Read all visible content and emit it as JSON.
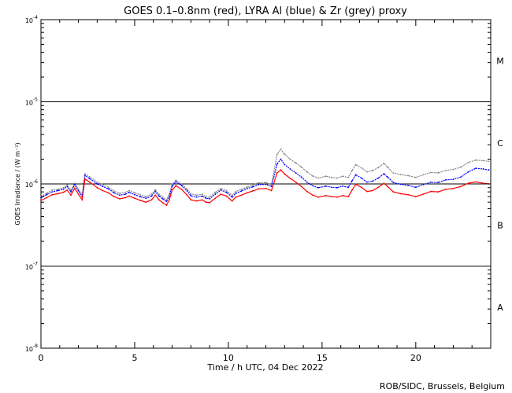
{
  "chart_data": {
    "type": "scatter",
    "title": "GOES 0.1–0.8nm (red), LYRA Al (blue) & Zr (grey) proxy",
    "xlabel": "Time / h UTC, 04 Dec 2022",
    "ylabel": "GOES Irradiance / (W m⁻²)",
    "credit": "ROB/SIDC, Brussels, Belgium",
    "xlim": [
      0,
      24
    ],
    "ylim": [
      1e-08,
      0.0001
    ],
    "yscale": "log",
    "x_ticks": [
      0,
      5,
      10,
      15,
      20
    ],
    "x_tick_labels": [
      "0",
      "5",
      "10",
      "15",
      "20"
    ],
    "y_ticks": [
      1e-08,
      1e-07,
      1e-06,
      1e-05,
      0.0001
    ],
    "y_tick_labels": [
      {
        "base": "10",
        "exp": "-8"
      },
      {
        "base": "10",
        "exp": "-7"
      },
      {
        "base": "10",
        "exp": "-6"
      },
      {
        "base": "10",
        "exp": "-5"
      },
      {
        "base": "10",
        "exp": "-4"
      }
    ],
    "flare_classes": [
      {
        "label": "A",
        "y": 3.16e-08
      },
      {
        "label": "B",
        "y": 3.16e-07
      },
      {
        "label": "C",
        "y": 3.16e-06
      },
      {
        "label": "M",
        "y": 3.16e-05
      }
    ],
    "threshold_lines": [
      1e-07,
      1e-06,
      1e-05
    ],
    "series": [
      {
        "name": "GOES 0.1–0.8nm",
        "color": "#ff0000",
        "points": [
          [
            0,
            6.3e-07
          ],
          [
            0.3,
            6.8e-07
          ],
          [
            0.6,
            7.4e-07
          ],
          [
            0.9,
            7.6e-07
          ],
          [
            1.2,
            7.9e-07
          ],
          [
            1.4,
            8.4e-07
          ],
          [
            1.6,
            7.3e-07
          ],
          [
            1.8,
            8.9e-07
          ],
          [
            2.0,
            7.5e-07
          ],
          [
            2.2,
            6.4e-07
          ],
          [
            2.35,
            1.15e-06
          ],
          [
            2.6,
            1.05e-06
          ],
          [
            3.0,
            9e-07
          ],
          [
            3.3,
            8.3e-07
          ],
          [
            3.6,
            7.8e-07
          ],
          [
            3.9,
            7e-07
          ],
          [
            4.2,
            6.6e-07
          ],
          [
            4.5,
            6.8e-07
          ],
          [
            4.7,
            7.1e-07
          ],
          [
            5.0,
            6.7e-07
          ],
          [
            5.3,
            6.3e-07
          ],
          [
            5.6,
            6e-07
          ],
          [
            5.9,
            6.4e-07
          ],
          [
            6.1,
            7.3e-07
          ],
          [
            6.3,
            6.4e-07
          ],
          [
            6.5,
            5.9e-07
          ],
          [
            6.7,
            5.5e-07
          ],
          [
            6.85,
            6.4e-07
          ],
          [
            7.0,
            8.4e-07
          ],
          [
            7.2,
            9.5e-07
          ],
          [
            7.5,
            8.6e-07
          ],
          [
            7.8,
            7.3e-07
          ],
          [
            8.0,
            6.4e-07
          ],
          [
            8.3,
            6.2e-07
          ],
          [
            8.6,
            6.4e-07
          ],
          [
            8.8,
            6e-07
          ],
          [
            9.0,
            5.9e-07
          ],
          [
            9.3,
            6.7e-07
          ],
          [
            9.6,
            7.5e-07
          ],
          [
            9.9,
            7.1e-07
          ],
          [
            10.2,
            6.2e-07
          ],
          [
            10.4,
            6.9e-07
          ],
          [
            10.7,
            7.3e-07
          ],
          [
            11.0,
            7.8e-07
          ],
          [
            11.3,
            8.2e-07
          ],
          [
            11.6,
            8.7e-07
          ],
          [
            12.0,
            8.8e-07
          ],
          [
            12.3,
            8.3e-07
          ],
          [
            12.6,
            1.36e-06
          ],
          [
            12.8,
            1.48e-06
          ],
          [
            13.0,
            1.32e-06
          ],
          [
            13.3,
            1.17e-06
          ],
          [
            13.6,
            1.05e-06
          ],
          [
            13.9,
            9.3e-07
          ],
          [
            14.2,
            8.1e-07
          ],
          [
            14.5,
            7.3e-07
          ],
          [
            14.8,
            6.9e-07
          ],
          [
            15.2,
            7.2e-07
          ],
          [
            15.5,
            7e-07
          ],
          [
            15.8,
            6.9e-07
          ],
          [
            16.1,
            7.2e-07
          ],
          [
            16.4,
            7e-07
          ],
          [
            16.6,
            8.4e-07
          ],
          [
            16.8,
            9.9e-07
          ],
          [
            17.1,
            9.1e-07
          ],
          [
            17.4,
            8.1e-07
          ],
          [
            17.7,
            8.3e-07
          ],
          [
            18.0,
            9.1e-07
          ],
          [
            18.3,
            1.02e-06
          ],
          [
            18.5,
            9.3e-07
          ],
          [
            18.8,
            8e-07
          ],
          [
            19.2,
            7.6e-07
          ],
          [
            19.6,
            7.4e-07
          ],
          [
            20.0,
            7e-07
          ],
          [
            20.4,
            7.5e-07
          ],
          [
            20.8,
            8.1e-07
          ],
          [
            21.2,
            8e-07
          ],
          [
            21.6,
            8.6e-07
          ],
          [
            22.0,
            8.8e-07
          ],
          [
            22.4,
            9.3e-07
          ],
          [
            22.8,
            1.02e-06
          ],
          [
            23.2,
            1.06e-06
          ],
          [
            23.6,
            1.02e-06
          ],
          [
            23.9,
            1e-06
          ]
        ]
      },
      {
        "name": "LYRA Al",
        "color": "#0000ff",
        "points": [
          [
            0,
            6.8e-07
          ],
          [
            0.3,
            7.4e-07
          ],
          [
            0.6,
            8e-07
          ],
          [
            0.9,
            8.3e-07
          ],
          [
            1.2,
            8.6e-07
          ],
          [
            1.4,
            9.3e-07
          ],
          [
            1.6,
            8e-07
          ],
          [
            1.8,
            9.8e-07
          ],
          [
            2.0,
            8.2e-07
          ],
          [
            2.2,
            7e-07
          ],
          [
            2.35,
            1.27e-06
          ],
          [
            2.6,
            1.16e-06
          ],
          [
            3.0,
            1e-06
          ],
          [
            3.3,
            9.3e-07
          ],
          [
            3.6,
            8.7e-07
          ],
          [
            3.9,
            7.8e-07
          ],
          [
            4.2,
            7.3e-07
          ],
          [
            4.5,
            7.5e-07
          ],
          [
            4.7,
            7.9e-07
          ],
          [
            5.0,
            7.4e-07
          ],
          [
            5.3,
            7e-07
          ],
          [
            5.6,
            6.7e-07
          ],
          [
            5.9,
            7.1e-07
          ],
          [
            6.1,
            8.1e-07
          ],
          [
            6.3,
            7.1e-07
          ],
          [
            6.5,
            6.6e-07
          ],
          [
            6.7,
            6.1e-07
          ],
          [
            6.85,
            7.1e-07
          ],
          [
            7.0,
            9.4e-07
          ],
          [
            7.2,
            1.06e-06
          ],
          [
            7.5,
            9.6e-07
          ],
          [
            7.8,
            8.2e-07
          ],
          [
            8.0,
            7.2e-07
          ],
          [
            8.3,
            6.9e-07
          ],
          [
            8.6,
            7.1e-07
          ],
          [
            8.8,
            6.7e-07
          ],
          [
            9.0,
            6.6e-07
          ],
          [
            9.3,
            7.5e-07
          ],
          [
            9.6,
            8.4e-07
          ],
          [
            9.9,
            7.9e-07
          ],
          [
            10.2,
            6.9e-07
          ],
          [
            10.4,
            7.7e-07
          ],
          [
            10.7,
            8.2e-07
          ],
          [
            11.0,
            8.8e-07
          ],
          [
            11.3,
            9.2e-07
          ],
          [
            11.6,
            9.8e-07
          ],
          [
            12.0,
            9.9e-07
          ],
          [
            12.3,
            9.3e-07
          ],
          [
            12.6,
            1.75e-06
          ],
          [
            12.8,
            2e-06
          ],
          [
            13.0,
            1.72e-06
          ],
          [
            13.3,
            1.52e-06
          ],
          [
            13.6,
            1.36e-06
          ],
          [
            13.9,
            1.21e-06
          ],
          [
            14.2,
            1.05e-06
          ],
          [
            14.5,
            9.5e-07
          ],
          [
            14.8,
            9e-07
          ],
          [
            15.2,
            9.4e-07
          ],
          [
            15.5,
            9.1e-07
          ],
          [
            15.8,
            9e-07
          ],
          [
            16.1,
            9.4e-07
          ],
          [
            16.4,
            9.1e-07
          ],
          [
            16.6,
            1.09e-06
          ],
          [
            16.8,
            1.29e-06
          ],
          [
            17.1,
            1.18e-06
          ],
          [
            17.4,
            1.05e-06
          ],
          [
            17.7,
            1.08e-06
          ],
          [
            18.0,
            1.18e-06
          ],
          [
            18.3,
            1.33e-06
          ],
          [
            18.5,
            1.21e-06
          ],
          [
            18.8,
            1.04e-06
          ],
          [
            19.2,
            9.9e-07
          ],
          [
            19.6,
            9.6e-07
          ],
          [
            20.0,
            9.1e-07
          ],
          [
            20.4,
            9.8e-07
          ],
          [
            20.8,
            1.05e-06
          ],
          [
            21.2,
            1.04e-06
          ],
          [
            21.6,
            1.12e-06
          ],
          [
            22.0,
            1.14e-06
          ],
          [
            22.4,
            1.21e-06
          ],
          [
            22.8,
            1.4e-06
          ],
          [
            23.2,
            1.55e-06
          ],
          [
            23.6,
            1.52e-06
          ],
          [
            23.9,
            1.48e-06
          ]
        ]
      },
      {
        "name": "LYRA Zr",
        "color": "#888888",
        "points": [
          [
            0,
            7e-07
          ],
          [
            0.3,
            7.7e-07
          ],
          [
            0.6,
            8.4e-07
          ],
          [
            0.9,
            8.6e-07
          ],
          [
            1.2,
            9e-07
          ],
          [
            1.4,
            9.7e-07
          ],
          [
            1.6,
            8.4e-07
          ],
          [
            1.8,
            1.02e-06
          ],
          [
            2.0,
            8.6e-07
          ],
          [
            2.2,
            7.4e-07
          ],
          [
            2.35,
            1.33e-06
          ],
          [
            2.6,
            1.22e-06
          ],
          [
            3.0,
            1.05e-06
          ],
          [
            3.3,
            9.8e-07
          ],
          [
            3.6,
            9.1e-07
          ],
          [
            3.9,
            8.2e-07
          ],
          [
            4.2,
            7.7e-07
          ],
          [
            4.5,
            7.9e-07
          ],
          [
            4.7,
            8.3e-07
          ],
          [
            5.0,
            7.8e-07
          ],
          [
            5.3,
            7.4e-07
          ],
          [
            5.6,
            7e-07
          ],
          [
            5.9,
            7.5e-07
          ],
          [
            6.1,
            8.5e-07
          ],
          [
            6.3,
            7.5e-07
          ],
          [
            6.5,
            6.9e-07
          ],
          [
            6.7,
            6.4e-07
          ],
          [
            6.85,
            7.5e-07
          ],
          [
            7.0,
            9.9e-07
          ],
          [
            7.2,
            1.11e-06
          ],
          [
            7.5,
            1e-06
          ],
          [
            7.8,
            8.6e-07
          ],
          [
            8.0,
            7.6e-07
          ],
          [
            8.3,
            7.3e-07
          ],
          [
            8.6,
            7.5e-07
          ],
          [
            8.8,
            7e-07
          ],
          [
            9.0,
            6.9e-07
          ],
          [
            9.3,
            7.9e-07
          ],
          [
            9.6,
            8.8e-07
          ],
          [
            9.9,
            8.3e-07
          ],
          [
            10.2,
            7.3e-07
          ],
          [
            10.4,
            8.1e-07
          ],
          [
            10.7,
            8.6e-07
          ],
          [
            11.0,
            9.2e-07
          ],
          [
            11.3,
            9.6e-07
          ],
          [
            11.6,
            1.03e-06
          ],
          [
            12.0,
            1.04e-06
          ],
          [
            12.3,
            9.8e-07
          ],
          [
            12.6,
            2.3e-06
          ],
          [
            12.8,
            2.65e-06
          ],
          [
            13.0,
            2.3e-06
          ],
          [
            13.3,
            2e-06
          ],
          [
            13.6,
            1.8e-06
          ],
          [
            13.9,
            1.6e-06
          ],
          [
            14.2,
            1.4e-06
          ],
          [
            14.5,
            1.25e-06
          ],
          [
            14.8,
            1.18e-06
          ],
          [
            15.2,
            1.24e-06
          ],
          [
            15.5,
            1.2e-06
          ],
          [
            15.8,
            1.18e-06
          ],
          [
            16.1,
            1.24e-06
          ],
          [
            16.4,
            1.2e-06
          ],
          [
            16.6,
            1.45e-06
          ],
          [
            16.8,
            1.72e-06
          ],
          [
            17.1,
            1.57e-06
          ],
          [
            17.4,
            1.4e-06
          ],
          [
            17.7,
            1.45e-06
          ],
          [
            18.0,
            1.58e-06
          ],
          [
            18.3,
            1.78e-06
          ],
          [
            18.5,
            1.6e-06
          ],
          [
            18.8,
            1.36e-06
          ],
          [
            19.2,
            1.3e-06
          ],
          [
            19.6,
            1.26e-06
          ],
          [
            20.0,
            1.2e-06
          ],
          [
            20.4,
            1.29e-06
          ],
          [
            20.8,
            1.38e-06
          ],
          [
            21.2,
            1.36e-06
          ],
          [
            21.6,
            1.46e-06
          ],
          [
            22.0,
            1.5e-06
          ],
          [
            22.4,
            1.6e-06
          ],
          [
            22.8,
            1.82e-06
          ],
          [
            23.2,
            1.95e-06
          ],
          [
            23.6,
            1.92e-06
          ],
          [
            23.9,
            1.88e-06
          ]
        ]
      }
    ]
  }
}
